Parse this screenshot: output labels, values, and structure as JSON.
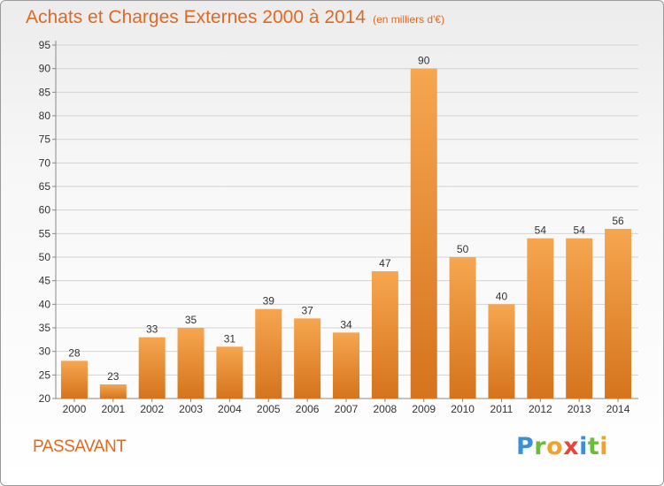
{
  "header": {
    "title": "Achats et Charges Externes 2000 à 2014",
    "unit": "(en milliers d'€)"
  },
  "footer": {
    "commune": "PASSAVANT",
    "logo_letters": [
      "P",
      "r",
      "o",
      "x",
      "i",
      "t",
      "i"
    ],
    "logo_colors": [
      "#3b8fd9",
      "#6dbb3a",
      "#f2a12b",
      "#e8443a",
      "#3b8fd9",
      "#6dbb3a",
      "#f2a12b"
    ]
  },
  "colors": {
    "bar_top": "#f6a650",
    "bar_bottom": "#d5741c",
    "grid": "#d3d3d3",
    "text": "#333333"
  },
  "chart_data": {
    "type": "bar",
    "title": "Achats et Charges Externes 2000 à 2014",
    "subtitle": "(en milliers d'€)",
    "categories": [
      "2000",
      "2001",
      "2002",
      "2003",
      "2004",
      "2005",
      "2006",
      "2007",
      "2008",
      "2009",
      "2010",
      "2011",
      "2012",
      "2013",
      "2014"
    ],
    "values": [
      28,
      23,
      33,
      35,
      31,
      39,
      37,
      34,
      47,
      90,
      50,
      40,
      54,
      54,
      56
    ],
    "ylim": [
      20,
      95
    ],
    "yticks": [
      20,
      25,
      30,
      35,
      40,
      45,
      50,
      55,
      60,
      65,
      70,
      75,
      80,
      85,
      90,
      95
    ],
    "grid": true,
    "xlabel": "",
    "ylabel": ""
  }
}
